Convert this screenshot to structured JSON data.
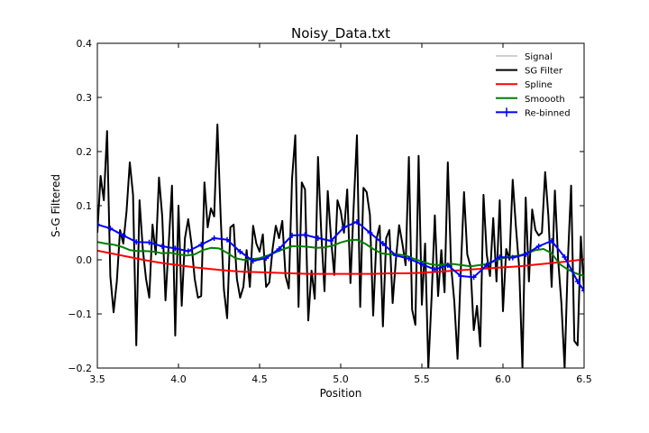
{
  "chart_data": {
    "type": "line",
    "title": "Noisy_Data.txt",
    "xlabel": "Position",
    "ylabel": "S-G Filtered",
    "xlim": [
      3.5,
      6.5
    ],
    "ylim": [
      -0.2,
      0.4
    ],
    "xticks": [
      "3.5",
      "4.0",
      "4.5",
      "5.0",
      "5.5",
      "6.0",
      "6.5"
    ],
    "yticks": [
      "−0.2",
      "−0.1",
      "0.0",
      "0.1",
      "0.2",
      "0.3",
      "0.4"
    ],
    "xtick_values": [
      3.5,
      4.0,
      4.5,
      5.0,
      5.5,
      6.0,
      6.5
    ],
    "ytick_values": [
      -0.2,
      -0.1,
      0.0,
      0.1,
      0.2,
      0.3,
      0.4
    ],
    "grid": false,
    "legend_position": "top-right",
    "series": [
      {
        "name": "Signal",
        "color": "#808080",
        "width": 0.8,
        "x": [],
        "y": []
      },
      {
        "name": "SG Filter",
        "color": "#000000",
        "width": 2,
        "x": [
          3.5,
          3.52,
          3.54,
          3.56,
          3.58,
          3.6,
          3.62,
          3.64,
          3.66,
          3.68,
          3.7,
          3.72,
          3.74,
          3.76,
          3.78,
          3.8,
          3.82,
          3.84,
          3.86,
          3.88,
          3.9,
          3.92,
          3.94,
          3.96,
          3.98,
          4.0,
          4.02,
          4.04,
          4.06,
          4.08,
          4.1,
          4.12,
          4.14,
          4.16,
          4.18,
          4.2,
          4.22,
          4.24,
          4.26,
          4.28,
          4.3,
          4.32,
          4.34,
          4.36,
          4.38,
          4.4,
          4.42,
          4.44,
          4.46,
          4.48,
          4.5,
          4.52,
          4.54,
          4.56,
          4.58,
          4.6,
          4.62,
          4.64,
          4.66,
          4.68,
          4.7,
          4.72,
          4.74,
          4.76,
          4.78,
          4.8,
          4.82,
          4.84,
          4.86,
          4.88,
          4.9,
          4.92,
          4.94,
          4.96,
          4.98,
          5.0,
          5.02,
          5.04,
          5.06,
          5.08,
          5.1,
          5.12,
          5.14,
          5.16,
          5.18,
          5.2,
          5.22,
          5.24,
          5.26,
          5.28,
          5.3,
          5.32,
          5.34,
          5.36,
          5.38,
          5.4,
          5.42,
          5.44,
          5.46,
          5.48,
          5.5,
          5.52,
          5.54,
          5.56,
          5.58,
          5.6,
          5.62,
          5.64,
          5.66,
          5.68,
          5.7,
          5.72,
          5.74,
          5.76,
          5.78,
          5.8,
          5.82,
          5.84,
          5.86,
          5.88,
          5.9,
          5.92,
          5.94,
          5.96,
          5.98,
          6.0,
          6.02,
          6.04,
          6.06,
          6.08,
          6.1,
          6.12,
          6.14,
          6.16,
          6.18,
          6.2,
          6.22,
          6.24,
          6.26,
          6.28,
          6.3,
          6.32,
          6.34,
          6.36,
          6.38,
          6.4,
          6.42,
          6.44,
          6.46,
          6.48,
          6.5
        ],
        "y": [
          0.05,
          0.155,
          0.11,
          0.238,
          -0.03,
          -0.097,
          -0.04,
          0.055,
          0.03,
          0.09,
          0.18,
          0.12,
          -0.158,
          0.11,
          0.02,
          -0.035,
          -0.07,
          0.065,
          0.01,
          0.152,
          0.08,
          -0.075,
          0.03,
          0.137,
          -0.14,
          0.1,
          -0.085,
          0.04,
          0.075,
          0.03,
          -0.035,
          -0.07,
          -0.067,
          0.143,
          0.06,
          0.095,
          0.08,
          0.25,
          0.08,
          -0.055,
          -0.108,
          0.06,
          0.065,
          -0.035,
          -0.07,
          -0.05,
          0.018,
          -0.05,
          0.063,
          0.03,
          0.015,
          0.047,
          -0.05,
          -0.042,
          0.02,
          0.063,
          0.04,
          0.072,
          -0.03,
          -0.053,
          0.15,
          0.23,
          -0.087,
          0.143,
          0.13,
          -0.112,
          -0.02,
          -0.072,
          0.19,
          0.05,
          -0.058,
          0.127,
          0.04,
          -0.028,
          0.11,
          0.09,
          0.05,
          0.13,
          -0.043,
          0.1,
          0.23,
          -0.087,
          0.133,
          0.125,
          0.083,
          -0.103,
          0.038,
          0.063,
          -0.123,
          0.04,
          0.055,
          -0.08,
          0.0,
          0.064,
          0.03,
          -0.01,
          0.19,
          -0.092,
          -0.12,
          0.192,
          -0.083,
          0.03,
          -0.2,
          -0.07,
          0.082,
          -0.067,
          0.018,
          -0.06,
          0.18,
          -0.01,
          -0.077,
          -0.183,
          -0.02,
          0.125,
          0.01,
          -0.012,
          -0.13,
          -0.085,
          -0.16,
          0.12,
          0.01,
          -0.03,
          0.077,
          -0.04,
          0.11,
          -0.095,
          0.02,
          0.0,
          0.148,
          0.06,
          -0.015,
          -0.2,
          0.115,
          -0.04,
          0.093,
          0.055,
          0.045,
          0.05,
          0.162,
          0.08,
          -0.05,
          0.128,
          0.0,
          -0.08,
          -0.2,
          0.0,
          0.137,
          -0.15,
          -0.158,
          0.043,
          -0.058
        ]
      },
      {
        "name": "Spline",
        "color": "#ff0000",
        "width": 2,
        "x": [
          3.5,
          3.6,
          3.7,
          3.8,
          3.9,
          4.0,
          4.1,
          4.2,
          4.3,
          4.4,
          4.5,
          4.6,
          4.7,
          4.8,
          4.9,
          5.0,
          5.1,
          5.2,
          5.3,
          5.4,
          5.5,
          5.6,
          5.7,
          5.8,
          5.9,
          6.0,
          6.1,
          6.2,
          6.3,
          6.4,
          6.5
        ],
        "y": [
          0.017,
          0.011,
          0.005,
          -0.001,
          -0.006,
          -0.01,
          -0.014,
          -0.017,
          -0.02,
          -0.022,
          -0.023,
          -0.024,
          -0.025,
          -0.026,
          -0.026,
          -0.026,
          -0.026,
          -0.026,
          -0.025,
          -0.025,
          -0.024,
          -0.022,
          -0.02,
          -0.018,
          -0.016,
          -0.014,
          -0.012,
          -0.009,
          -0.006,
          -0.003,
          0.001
        ]
      },
      {
        "name": "Smoooth",
        "color": "#008000",
        "width": 2,
        "x": [
          3.5,
          3.55,
          3.6,
          3.65,
          3.7,
          3.75,
          3.8,
          3.85,
          3.9,
          3.95,
          4.0,
          4.05,
          4.1,
          4.15,
          4.2,
          4.25,
          4.3,
          4.35,
          4.4,
          4.45,
          4.5,
          4.55,
          4.6,
          4.65,
          4.7,
          4.75,
          4.8,
          4.85,
          4.9,
          4.95,
          5.0,
          5.05,
          5.1,
          5.15,
          5.2,
          5.25,
          5.3,
          5.35,
          5.4,
          5.45,
          5.5,
          5.55,
          5.6,
          5.65,
          5.7,
          5.75,
          5.8,
          5.85,
          5.9,
          5.95,
          6.0,
          6.05,
          6.1,
          6.15,
          6.2,
          6.25,
          6.3,
          6.35,
          6.4,
          6.45,
          6.5
        ],
        "y": [
          0.033,
          0.03,
          0.028,
          0.024,
          0.018,
          0.016,
          0.016,
          0.015,
          0.012,
          0.013,
          0.01,
          0.008,
          0.01,
          0.018,
          0.022,
          0.021,
          0.013,
          0.003,
          0.0,
          0.001,
          0.003,
          0.008,
          0.014,
          0.02,
          0.025,
          0.025,
          0.024,
          0.022,
          0.023,
          0.026,
          0.032,
          0.036,
          0.037,
          0.03,
          0.02,
          0.012,
          0.01,
          0.01,
          0.008,
          0.002,
          -0.003,
          -0.008,
          -0.01,
          -0.008,
          -0.008,
          -0.01,
          -0.012,
          -0.01,
          -0.008,
          -0.002,
          0.003,
          0.006,
          0.008,
          0.012,
          0.018,
          0.02,
          0.012,
          -0.008,
          -0.018,
          -0.025,
          -0.03
        ]
      },
      {
        "name": "Re-binned",
        "color": "#0000ff",
        "width": 2,
        "markers": true,
        "x": [
          3.5,
          3.58,
          3.66,
          3.74,
          3.82,
          3.9,
          3.98,
          4.06,
          4.14,
          4.22,
          4.3,
          4.38,
          4.46,
          4.54,
          4.62,
          4.7,
          4.78,
          4.86,
          4.94,
          5.02,
          5.1,
          5.18,
          5.26,
          5.34,
          5.42,
          5.5,
          5.58,
          5.66,
          5.74,
          5.82,
          5.9,
          5.98,
          6.06,
          6.14,
          6.22,
          6.3,
          6.38,
          6.46,
          6.5
        ],
        "y": [
          0.065,
          0.058,
          0.045,
          0.033,
          0.032,
          0.025,
          0.021,
          0.016,
          0.028,
          0.04,
          0.037,
          0.015,
          -0.002,
          0.003,
          0.02,
          0.045,
          0.046,
          0.04,
          0.035,
          0.06,
          0.07,
          0.05,
          0.03,
          0.008,
          0.002,
          -0.008,
          -0.018,
          -0.01,
          -0.03,
          -0.032,
          -0.01,
          0.005,
          0.004,
          0.01,
          0.025,
          0.035,
          0.005,
          -0.04,
          -0.057
        ]
      }
    ]
  }
}
